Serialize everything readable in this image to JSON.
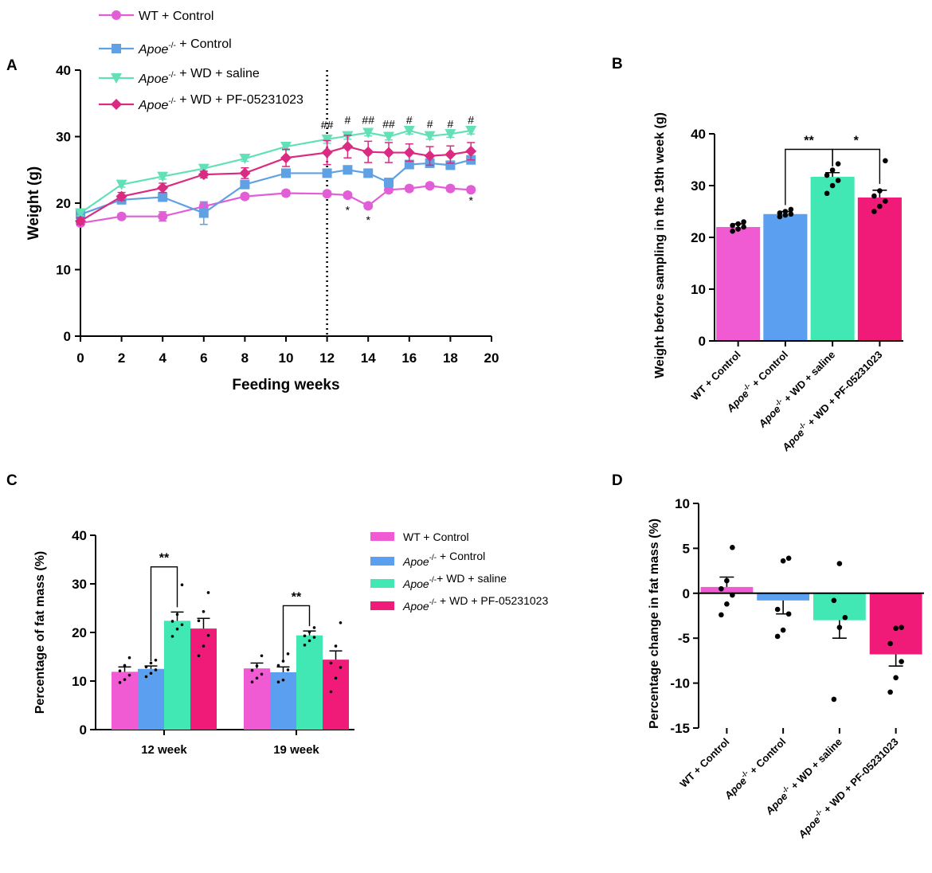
{
  "panels": {
    "A": "A",
    "B": "B",
    "C": "C",
    "D": "D"
  },
  "legend_suffix": {
    "wt_control": " + Control",
    "apoe_control": " + Control",
    "apoe_wd_saline": " + WD + saline",
    "apoe_wd_saline_c": "+ WD + saline",
    "apoe_wd_pf": " + WD + PF-05231023"
  },
  "legend_prefix": {
    "wt": "WT",
    "apoe": "Apoe",
    "apoe_sup": "-/-"
  },
  "colors": {
    "wt": "#f05bd3",
    "apoe_control": "#5a9ff0",
    "saline": "#42e8b3",
    "pf": "#f01a78",
    "wt_line": "#e25ed6",
    "apoe_line": "#5fa1e3",
    "saline_line": "#62e0b8",
    "pf_line": "#db2a82",
    "hash_color": "#5b8ed6"
  },
  "chart_data": [
    {
      "id": "A",
      "type": "line",
      "xlabel": "Feeding weeks",
      "ylabel": "Weight (g)",
      "xlim": [
        0,
        20
      ],
      "ylim": [
        0,
        40
      ],
      "xticks": [
        0,
        2,
        4,
        6,
        8,
        10,
        12,
        14,
        16,
        18,
        20
      ],
      "yticks": [
        0,
        10,
        20,
        30,
        40
      ],
      "vline_x": 12,
      "series": [
        {
          "key": "wt",
          "name": "WT + Control",
          "marker": "circle",
          "x": [
            0,
            2,
            4,
            6,
            8,
            10,
            12,
            13,
            14,
            15,
            16,
            17,
            18,
            19
          ],
          "y": [
            17,
            18,
            18,
            19.5,
            21,
            21.5,
            21.4,
            21.2,
            19.6,
            22,
            22.2,
            22.6,
            22.2,
            22
          ],
          "err": [
            0.4,
            0.4,
            0.7,
            0.5,
            0.4,
            0.4,
            0.4,
            0.4,
            0.4,
            0.4,
            0.4,
            0.4,
            0.4,
            0.4
          ]
        },
        {
          "key": "apoe_control",
          "name": "Apoe-/- + Control",
          "marker": "square",
          "x": [
            0,
            2,
            4,
            6,
            8,
            10,
            12,
            13,
            14,
            15,
            16,
            17,
            18,
            19
          ],
          "y": [
            18.3,
            20.5,
            20.9,
            18.5,
            22.8,
            24.5,
            24.5,
            25,
            24.5,
            23.1,
            25.8,
            26,
            25.7,
            26.5
          ],
          "err": [
            0.6,
            0.5,
            0.6,
            1.7,
            0.5,
            0.5,
            0.5,
            0.5,
            0.5,
            0.6,
            0.6,
            0.6,
            0.6,
            0.6
          ]
        },
        {
          "key": "saline",
          "name": "Apoe-/- + WD + saline",
          "marker": "triangle",
          "x": [
            0,
            2,
            4,
            6,
            8,
            10,
            12,
            13,
            14,
            15,
            16,
            17,
            18,
            19
          ],
          "y": [
            18.5,
            22.8,
            24,
            25.2,
            26.7,
            28.5,
            29.6,
            30.1,
            30.6,
            30,
            30.9,
            30.1,
            30.4,
            30.9
          ],
          "err": [
            0.4,
            0.4,
            0.4,
            0.4,
            0.4,
            0.5,
            0.6,
            0.5,
            0.5,
            0.5,
            0.5,
            0.5,
            0.5,
            0.5
          ]
        },
        {
          "key": "pf",
          "name": "Apoe-/- + WD + PF-05231023",
          "marker": "diamond",
          "x": [
            0,
            2,
            4,
            6,
            8,
            10,
            12,
            13,
            14,
            15,
            16,
            17,
            18,
            19
          ],
          "y": [
            17.3,
            21,
            22.3,
            24.3,
            24.5,
            26.8,
            27.6,
            28.5,
            27.7,
            27.6,
            27.6,
            27.1,
            27.3,
            27.8
          ],
          "err": [
            0.5,
            0.6,
            0.7,
            0.5,
            0.8,
            1.3,
            1.8,
            1.7,
            1.6,
            1.5,
            1.3,
            1.4,
            1.3,
            1.3
          ]
        }
      ],
      "hash_annotations": [
        {
          "x": 12,
          "y": 31.2,
          "label": "##"
        },
        {
          "x": 13,
          "y": 31.9,
          "label": "#"
        },
        {
          "x": 14,
          "y": 31.9,
          "label": "##"
        },
        {
          "x": 15,
          "y": 31.3,
          "label": "##"
        },
        {
          "x": 16,
          "y": 31.9,
          "label": "#"
        },
        {
          "x": 17,
          "y": 31.3,
          "label": "#"
        },
        {
          "x": 18,
          "y": 31.3,
          "label": "#"
        },
        {
          "x": 19,
          "y": 31.9,
          "label": "#"
        }
      ],
      "star_annotations": [
        {
          "x": 13,
          "y": 18.4,
          "label": "*"
        },
        {
          "x": 14,
          "y": 16.9,
          "label": "*"
        },
        {
          "x": 19,
          "y": 19.8,
          "label": "*"
        }
      ]
    },
    {
      "id": "B",
      "type": "bar",
      "ylabel": "Weight before sampling in the 19th week (g)",
      "ylim": [
        0,
        40
      ],
      "yticks": [
        0,
        10,
        20,
        30,
        40
      ],
      "categories": [
        "WT + Control",
        "Apoe-/- + Control",
        "Apoe-/- + WD + saline",
        "Apoe-/- + WD + PF-05231023"
      ],
      "values": [
        22,
        24.5,
        31.7,
        27.7
      ],
      "errors": [
        0.6,
        0.5,
        0.8,
        1.4
      ],
      "points": [
        [
          21.2,
          21.6,
          22,
          22.3,
          22.6,
          23
        ],
        [
          24,
          24.3,
          24.5,
          24.7,
          25,
          25.4
        ],
        [
          28.5,
          30,
          31,
          32,
          33,
          34.2
        ],
        [
          25,
          26,
          27,
          28,
          29,
          34.8
        ]
      ],
      "significance": [
        {
          "from": 1,
          "to": 2,
          "label": "**",
          "y": 37
        },
        {
          "from": 2,
          "to": 3,
          "label": "*",
          "y": 37
        }
      ]
    },
    {
      "id": "C",
      "type": "bar",
      "ylabel": "Percentage of fat mass (%)",
      "ylim": [
        0,
        40
      ],
      "yticks": [
        0,
        10,
        20,
        30,
        40
      ],
      "groups": [
        "12 week",
        "19 week"
      ],
      "series": [
        {
          "key": "wt",
          "name": "WT + Control",
          "values": [
            11.9,
            12.6
          ],
          "errors": [
            1,
            1.1
          ],
          "points": [
            [
              9.7,
              10.3,
              11.2,
              12.1,
              13.2,
              14.8
            ],
            [
              9.8,
              10.6,
              11.4,
              12.2,
              13.1,
              15.2
            ]
          ]
        },
        {
          "key": "apoe_control",
          "name": "Apoe-/- + Control",
          "values": [
            12.5,
            11.8
          ],
          "errors": [
            0.6,
            1.1
          ],
          "points": [
            [
              10.9,
              11.6,
              12.3,
              12.9,
              13.7,
              14.3
            ],
            [
              9.8,
              10.2,
              12.3,
              13.2,
              14.1,
              15.6
            ]
          ]
        },
        {
          "key": "saline",
          "name": "Apoe-/- + WD + saline",
          "values": [
            22.4,
            19.4
          ],
          "errors": [
            1.8,
            0.9
          ],
          "points": [
            [
              19.2,
              20.7,
              21.6,
              22.3,
              23.7,
              29.8
            ],
            [
              17.4,
              18.3,
              19,
              19.3,
              20.1,
              21
            ]
          ]
        },
        {
          "key": "pf",
          "name": "Apoe-/- + WD + PF-05231023",
          "values": [
            20.8,
            14.4
          ],
          "errors": [
            2.1,
            1.8
          ],
          "points": [
            [
              15.2,
              17.2,
              19.4,
              22.4,
              24.3,
              28.2
            ],
            [
              7.8,
              10.6,
              12.8,
              13.7,
              17.2,
              22
            ]
          ]
        }
      ],
      "significance": [
        {
          "group": 0,
          "from": 1,
          "to": 2,
          "label": "**",
          "y": 33.5
        },
        {
          "group": 1,
          "from": 1,
          "to": 2,
          "label": "**",
          "y": 25.5
        }
      ]
    },
    {
      "id": "D",
      "type": "bar",
      "ylabel": "Percentage change in fat mass (%)",
      "ylim": [
        -15,
        10
      ],
      "yticks": [
        -15,
        -10,
        -5,
        0,
        5,
        10
      ],
      "categories": [
        "WT + Control",
        "Apoe-/- + Control",
        "Apoe-/- + WD + saline",
        "Apoe-/- + WD + PF-05231023"
      ],
      "values": [
        0.7,
        -0.8,
        -3,
        -6.8
      ],
      "errors": [
        1.1,
        1.5,
        2,
        1.3
      ],
      "points": [
        [
          -2.4,
          -1.2,
          -0.2,
          0.5,
          1.4,
          5.1
        ],
        [
          -4.8,
          -4.1,
          -2.3,
          -1.8,
          3.6,
          3.9
        ],
        [
          -11.8,
          -3.8,
          -2.7,
          -0.8,
          3.3
        ],
        [
          -11,
          -9.4,
          -7.6,
          -5.6,
          -3.9,
          -3.8
        ]
      ]
    }
  ]
}
